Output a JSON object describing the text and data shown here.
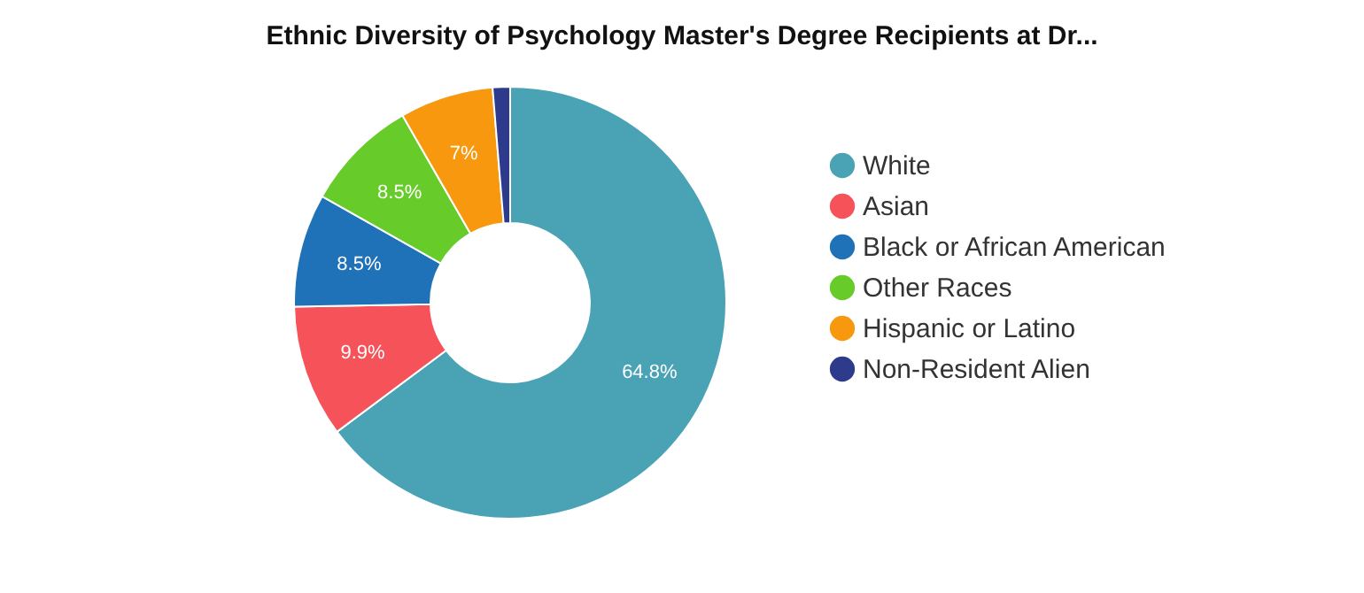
{
  "chart_data": {
    "type": "donut",
    "title": "Ethnic Diversity of Psychology Master's Degree Recipients at Dr...",
    "categories": [
      "White",
      "Asian",
      "Black or African American",
      "Other Races",
      "Hispanic or Latino",
      "Non-Resident Alien"
    ],
    "values": [
      64.8,
      9.9,
      8.5,
      8.5,
      7,
      1.3
    ],
    "value_labels": [
      "64.8%",
      "9.9%",
      "8.5%",
      "8.5%",
      "7%",
      null
    ],
    "colors": [
      "#4aa3b5",
      "#f5525a",
      "#1f72b8",
      "#67cc2a",
      "#f7980f",
      "#2e3a8c"
    ],
    "legend": "right"
  }
}
